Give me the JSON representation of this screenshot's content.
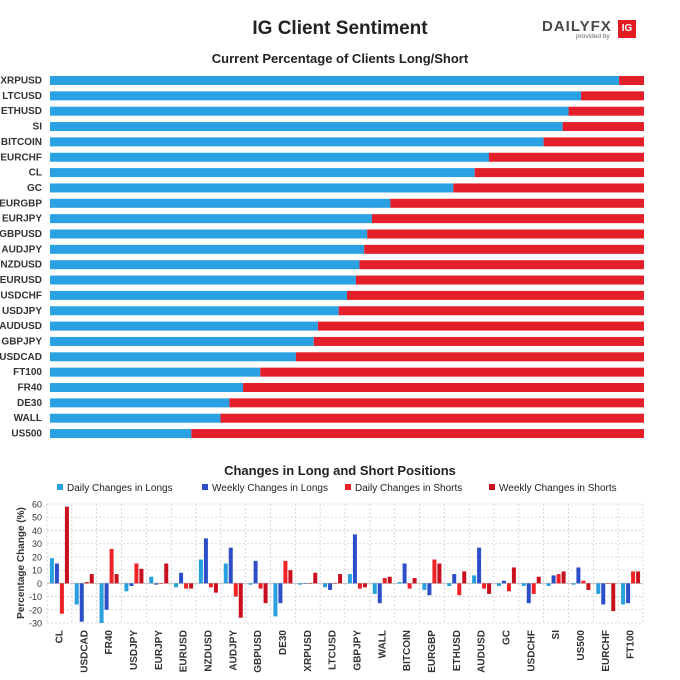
{
  "header": {
    "title": "IG Client Sentiment",
    "logo_text": "DAILYFX",
    "logo_sub": "provided by",
    "logo_badge": "IG"
  },
  "colors": {
    "long": "#2aa1e3",
    "short": "#e3202a",
    "daily_longs": "#28a0df",
    "weekly_longs": "#2c4fc9",
    "daily_shorts": "#ee2227",
    "weekly_shorts": "#c8101e"
  },
  "chart_data": [
    {
      "type": "bar",
      "orientation": "horizontal",
      "stacked": true,
      "title": "Current Percentage of Clients Long/Short",
      "categories": [
        "XRPUSD",
        "LTCUSD",
        "ETHUSD",
        "SI",
        "BITCOIN",
        "EURCHF",
        "CL",
        "GC",
        "EURGBP",
        "EURJPY",
        "GBPUSD",
        "AUDJPY",
        "NZDUSD",
        "EURUSD",
        "USDCHF",
        "USDJPY",
        "AUDUSD",
        "GBPJPY",
        "USDCAD",
        "FT100",
        "FR40",
        "DE30",
        "WALL",
        "US500"
      ],
      "series": [
        {
          "values": [
            95.8,
            89.4,
            87.3,
            86.3,
            83.1,
            73.9,
            71.5,
            67.9,
            57.3,
            54.2,
            53.4,
            52.9,
            52.1,
            51.5,
            50.0,
            48.6,
            45.1,
            44.4,
            41.4,
            35.4,
            32.5,
            30.2,
            28.7,
            23.8
          ]
        },
        {
          "values": [
            4.2,
            10.6,
            12.7,
            13.7,
            16.9,
            26.1,
            28.5,
            32.1,
            42.7,
            45.8,
            46.6,
            47.1,
            47.9,
            48.5,
            50.0,
            51.4,
            54.9,
            55.6,
            58.6,
            64.6,
            67.5,
            69.8,
            71.3,
            76.2
          ]
        }
      ],
      "xlim": [
        0,
        100
      ]
    },
    {
      "type": "bar",
      "title": "Changes in Long and Short Positions",
      "ylabel": "Percentage Change (%)",
      "ylim": [
        -30,
        60
      ],
      "yticks": [
        -30,
        -20,
        -10,
        0,
        10,
        20,
        30,
        40,
        50,
        60
      ],
      "grid": true,
      "legend_position": "top",
      "categories": [
        "CL",
        "USDCAD",
        "FR40",
        "USDJPY",
        "EURJPY",
        "EURUSD",
        "NZDUSD",
        "AUDJPY",
        "GBPUSD",
        "DE30",
        "XRPUSD",
        "LTCUSD",
        "GBPJPY",
        "WALL",
        "BITCOIN",
        "EURGBP",
        "ETHUSD",
        "AUDUSD",
        "GC",
        "USDCHF",
        "SI",
        "US500",
        "EURCHF",
        "FT100"
      ],
      "series": [
        {
          "name": "Daily Changes in Longs",
          "values": [
            19,
            -16,
            -30,
            -6,
            5,
            -3,
            18,
            15,
            -1,
            -25,
            -1,
            -3,
            7,
            -8,
            1,
            -5,
            -2,
            6,
            -2,
            -2,
            -2,
            -1,
            -8,
            -16
          ]
        },
        {
          "name": "Weekly Changes in Longs",
          "values": [
            15,
            -29,
            -20,
            -2,
            -1,
            8,
            34,
            27,
            17,
            -15,
            0,
            -5,
            37,
            -15,
            15,
            -9,
            7,
            27,
            2,
            -15,
            6,
            12,
            -16,
            -15
          ]
        },
        {
          "name": "Daily Changes in Shorts",
          "values": [
            -23,
            1,
            26,
            15,
            0,
            -4,
            -3,
            -10,
            -4,
            17,
            0,
            0,
            -4,
            4,
            -4,
            18,
            -9,
            -4,
            -6,
            -8,
            7,
            2,
            0,
            9
          ]
        },
        {
          "name": "Weekly Changes in Shorts",
          "values": [
            58,
            7,
            7,
            11,
            15,
            -4,
            -7,
            -26,
            -15,
            10,
            8,
            7,
            -3,
            5,
            4,
            15,
            9,
            -8,
            12,
            5,
            9,
            -5,
            -21,
            9
          ]
        }
      ]
    }
  ]
}
